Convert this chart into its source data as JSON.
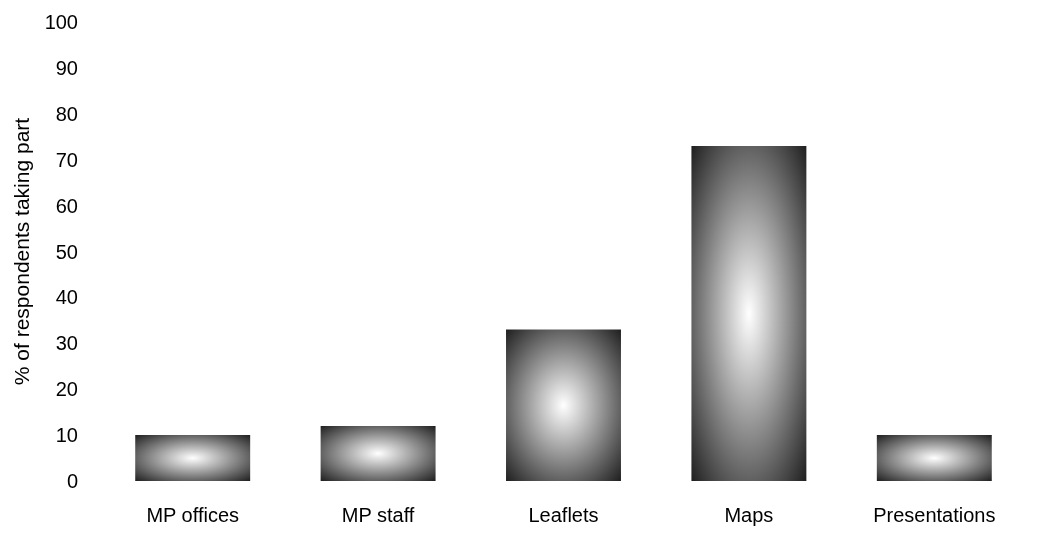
{
  "chart_data": {
    "type": "bar",
    "ylabel": "% of respondents taking part",
    "categories": [
      "MP offices",
      "MP staff",
      "Leaflets",
      "Maps",
      "Presentations"
    ],
    "values": [
      10,
      12,
      33,
      73,
      10
    ],
    "color": "#111111",
    "ylim": [
      0,
      100
    ],
    "yticks": [
      0,
      10,
      20,
      30,
      40,
      50,
      60,
      70,
      80,
      90,
      100
    ],
    "grid": false
  }
}
